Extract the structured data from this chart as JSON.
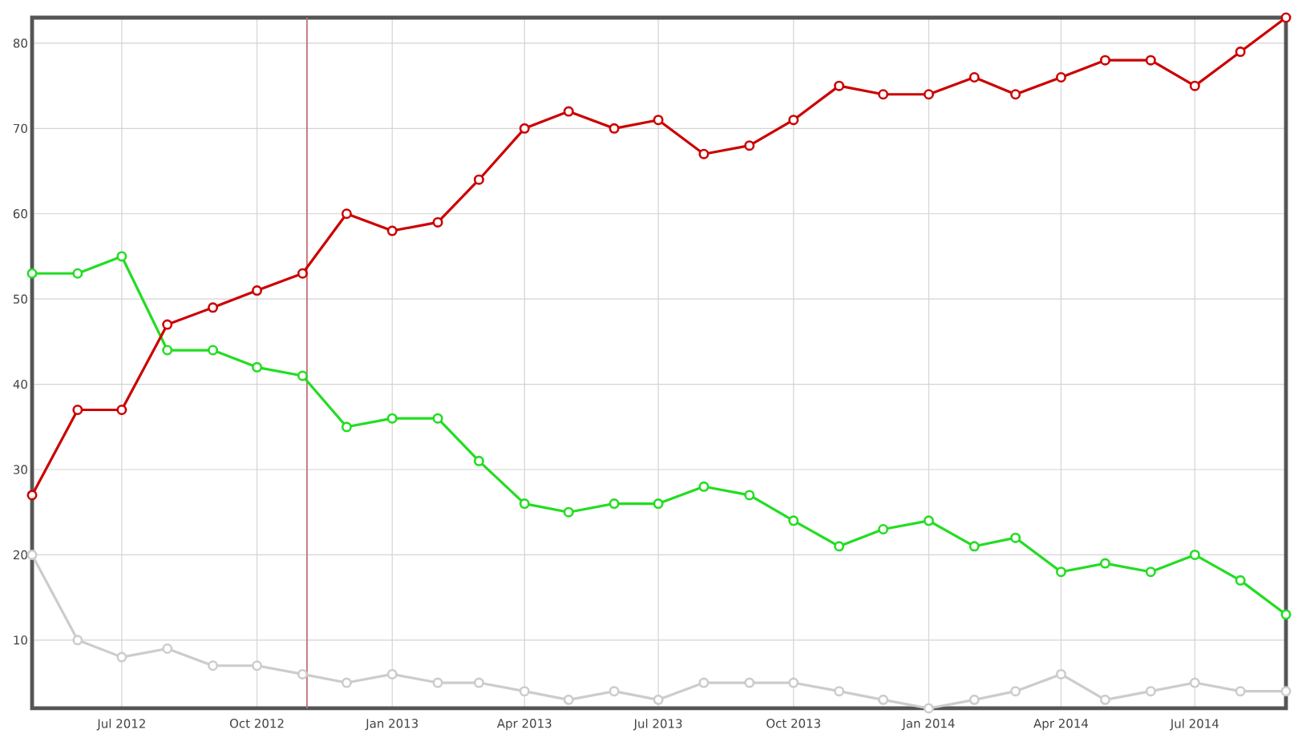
{
  "chart_data": {
    "type": "line",
    "x": [
      "2012-05",
      "2012-06",
      "2012-07",
      "2012-08",
      "2012-09",
      "2012-10",
      "2012-11",
      "2012-12",
      "2013-01",
      "2013-02",
      "2013-03",
      "2013-04",
      "2013-05",
      "2013-06",
      "2013-07",
      "2013-08",
      "2013-09",
      "2013-10",
      "2013-11",
      "2013-12",
      "2014-01",
      "2014-02",
      "2014-03",
      "2014-04",
      "2014-05",
      "2014-06",
      "2014-07",
      "2014-08",
      "2014-09"
    ],
    "series": [
      {
        "color": "#cc0000",
        "values": [
          27,
          37,
          37,
          47,
          49,
          51,
          53,
          60,
          58,
          59,
          64,
          70,
          72,
          70,
          71,
          67,
          68,
          71,
          75,
          74,
          74,
          76,
          74,
          76,
          78,
          78,
          75,
          79,
          83
        ]
      },
      {
        "color": "#22dd22",
        "values": [
          53,
          53,
          55,
          44,
          44,
          42,
          41,
          35,
          36,
          36,
          31,
          26,
          25,
          26,
          26,
          28,
          27,
          24,
          21,
          23,
          24,
          21,
          22,
          18,
          19,
          18,
          20,
          17,
          13
        ]
      },
      {
        "color": "#cccccc",
        "values": [
          20,
          10,
          8,
          9,
          7,
          7,
          6,
          5,
          6,
          5,
          5,
          4,
          3,
          4,
          3,
          5,
          5,
          5,
          4,
          3,
          2,
          3,
          4,
          6,
          3,
          4,
          5,
          4,
          4
        ]
      }
    ],
    "xlim": [
      "2012-05",
      "2014-09"
    ],
    "ylim": [
      2,
      83
    ],
    "xticks": [
      {
        "value": "2012-07",
        "label": "Jul 2012"
      },
      {
        "value": "2012-10",
        "label": "Oct 2012"
      },
      {
        "value": "2013-01",
        "label": "Jan 2013"
      },
      {
        "value": "2013-04",
        "label": "Apr 2013"
      },
      {
        "value": "2013-07",
        "label": "Jul 2013"
      },
      {
        "value": "2013-10",
        "label": "Oct 2013"
      },
      {
        "value": "2014-01",
        "label": "Jan 2014"
      },
      {
        "value": "2014-04",
        "label": "Apr 2014"
      },
      {
        "value": "2014-07",
        "label": "Jul 2014"
      }
    ],
    "yticks": [
      10,
      20,
      30,
      40,
      50,
      60,
      70,
      80
    ],
    "grid": true,
    "marker": "circle",
    "line_style": "solid",
    "ref_lines": [
      {
        "axis": "x",
        "value": "2012-11-04",
        "color": "#c07070"
      }
    ]
  }
}
